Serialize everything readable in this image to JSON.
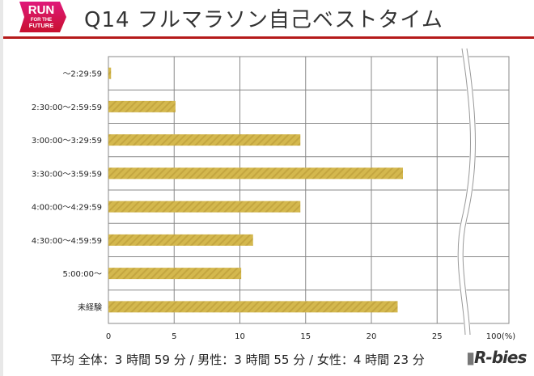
{
  "header": {
    "logo_text": [
      "RUN",
      "FOR THE",
      "FUTURE"
    ],
    "title": "Q14 フルマラソン自己ベストタイム",
    "accent": "#b51a1a"
  },
  "chart_data": {
    "type": "bar",
    "orientation": "horizontal",
    "categories": [
      "～2:29:59",
      "2:30:00～2:59:59",
      "3:00:00～3:29:59",
      "3:30:00～3:59:59",
      "4:00:00～4:29:59",
      "4:30:00～4:59:59",
      "5:00:00～",
      "未経験"
    ],
    "values": [
      0.2,
      5.1,
      14.6,
      22.4,
      14.6,
      11.0,
      10.1,
      22.0
    ],
    "xlim": [
      0,
      100
    ],
    "axis_break": [
      27,
      100
    ],
    "xticks": [
      "0",
      "5",
      "10",
      "15",
      "20",
      "25",
      "100(%)"
    ],
    "grid": true,
    "bar_color": "#d4b84e",
    "bar_pattern": "diagonal-hatch"
  },
  "footer": {
    "text": "平均  全体：3 時間 59 分 / 男性：3 時間 55 分 / 女性：4 時間 23 分",
    "brand": "R-bies"
  }
}
